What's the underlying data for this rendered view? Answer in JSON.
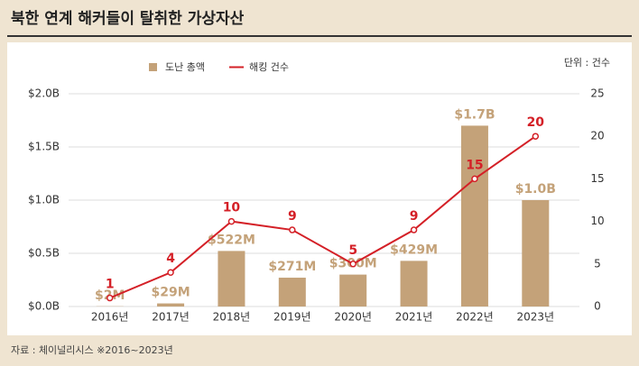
{
  "chart_data": {
    "type": "bar-line",
    "title": "북한 연계 해커들이 탈취한 가상자산",
    "source": "자료 : 체이널리시스 ※2016~2023년",
    "y2_unit": "단위 : 건수",
    "categories": [
      "2016년",
      "2017년",
      "2018년",
      "2019년",
      "2020년",
      "2021년",
      "2022년",
      "2023년"
    ],
    "series": [
      {
        "name": "도난 총액",
        "type": "bar",
        "color": "#c4a279",
        "values": [
          0.002,
          0.029,
          0.522,
          0.271,
          0.3,
          0.429,
          1.7,
          1.0
        ],
        "value_labels": [
          "$2M",
          "$29M",
          "$522M",
          "$271M",
          "$300M",
          "$429M",
          "$1.7B",
          "$1.0B"
        ]
      },
      {
        "name": "해킹 건수",
        "type": "line",
        "axis": "y2",
        "color": "#d42027",
        "values": [
          1,
          4,
          10,
          9,
          5,
          9,
          15,
          20
        ]
      }
    ],
    "ylim": [
      0,
      2
    ],
    "yticks": [
      {
        "value": 0,
        "label": "$0.0B"
      },
      {
        "value": 0.5,
        "label": "$0.5B"
      },
      {
        "value": 1,
        "label": "$1.0B"
      },
      {
        "value": 1.5,
        "label": "$1.5B"
      },
      {
        "value": 2,
        "label": "$2.0B"
      }
    ],
    "y2lim": [
      0,
      25
    ],
    "y2ticks": [
      0,
      5,
      10,
      15,
      20,
      25
    ],
    "grid": true
  }
}
